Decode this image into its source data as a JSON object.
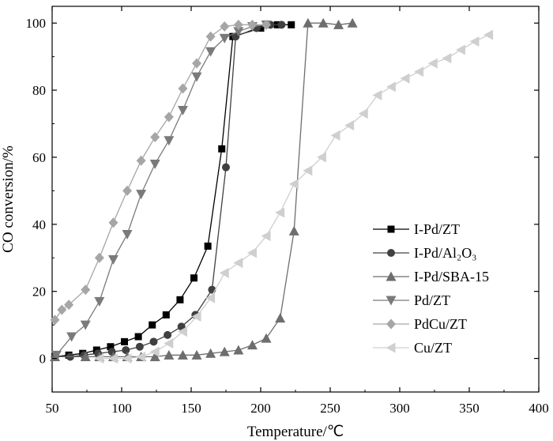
{
  "chart_data": {
    "type": "line",
    "xlabel": "Temperature/℃",
    "ylabel": "CO conversion/%",
    "xlim": [
      50,
      400
    ],
    "ylim": [
      -10,
      105
    ],
    "xticks": [
      50,
      100,
      150,
      200,
      250,
      300,
      350,
      400
    ],
    "yticks": [
      0,
      20,
      40,
      60,
      80,
      100
    ],
    "grid": false,
    "legend_position": "right-middle",
    "series": [
      {
        "name": "I-Pd/ZT",
        "marker": "square",
        "color": "#000000",
        "x": [
          52,
          62,
          72,
          82,
          92,
          102,
          112,
          122,
          132,
          142,
          152,
          162,
          172,
          180,
          200,
          212,
          222
        ],
        "y": [
          0.5,
          1,
          1.5,
          2.5,
          3.5,
          5,
          6.5,
          10,
          13,
          17.5,
          24,
          33.5,
          62.5,
          96,
          98.5,
          99.5,
          99.5
        ]
      },
      {
        "name": "I-Pd/Al₂O₃",
        "marker": "circle",
        "color": "#404040",
        "x": [
          52,
          63,
          73,
          83,
          93,
          103,
          113,
          123,
          133,
          143,
          153,
          165,
          175,
          182,
          197,
          207,
          215
        ],
        "y": [
          0.5,
          0.5,
          1,
          1.5,
          2,
          2.5,
          3.5,
          5,
          7,
          9.5,
          13,
          20.5,
          57,
          96,
          98.5,
          99.5,
          99.5
        ]
      },
      {
        "name": "I-Pd/SBA-15",
        "marker": "triangle-up",
        "color": "#6e6e6e",
        "x": [
          52,
          74,
          84,
          94,
          104,
          114,
          124,
          134,
          144,
          154,
          164,
          174,
          184,
          194,
          204,
          214,
          224,
          234,
          245,
          256,
          266
        ],
        "y": [
          0.5,
          0.5,
          0.5,
          0.5,
          0.5,
          0.5,
          0.5,
          1,
          1,
          1,
          1.5,
          2,
          2.5,
          4,
          6,
          12,
          38,
          100,
          100,
          99.5,
          100
        ]
      },
      {
        "name": "Pd/ZT",
        "marker": "triangle-down",
        "color": "#7a7a7a",
        "x": [
          53,
          64,
          74,
          84,
          94,
          104,
          114,
          124,
          134,
          144,
          154,
          164,
          174,
          184,
          194,
          204
        ],
        "y": [
          1,
          6.5,
          10,
          17,
          29.5,
          37,
          49,
          58,
          65,
          74,
          84,
          91.5,
          95.5,
          97.5,
          99,
          99.5
        ]
      },
      {
        "name": "PdCu/ZT",
        "marker": "diamond",
        "color": "#a6a6a6",
        "x": [
          52,
          57,
          62,
          74,
          84,
          94,
          104,
          114,
          124,
          134,
          144,
          154,
          164,
          174,
          184,
          194,
          204
        ],
        "y": [
          11.5,
          14.5,
          16,
          20.5,
          30,
          40.5,
          50,
          59,
          66,
          72,
          80.5,
          88,
          96,
          99,
          99.5,
          99.5,
          99.5
        ]
      },
      {
        "name": "Cu/ZT",
        "marker": "triangle-left",
        "color": "#cfcfcf",
        "x": [
          84,
          94,
          104,
          114,
          124,
          134,
          144,
          154,
          164,
          174,
          184,
          194,
          204,
          214,
          224,
          234,
          244,
          254,
          264,
          274,
          284,
          294,
          304,
          314,
          324,
          334,
          344,
          354,
          364
        ],
        "y": [
          0,
          0,
          0,
          0.5,
          2,
          4.5,
          8,
          12.5,
          18,
          25.5,
          28.5,
          31.5,
          36.5,
          43.5,
          52,
          56,
          60,
          66.5,
          69.5,
          73,
          78.5,
          81,
          83.5,
          85.5,
          88,
          89.5,
          92,
          94.5,
          96.5
        ]
      }
    ]
  }
}
